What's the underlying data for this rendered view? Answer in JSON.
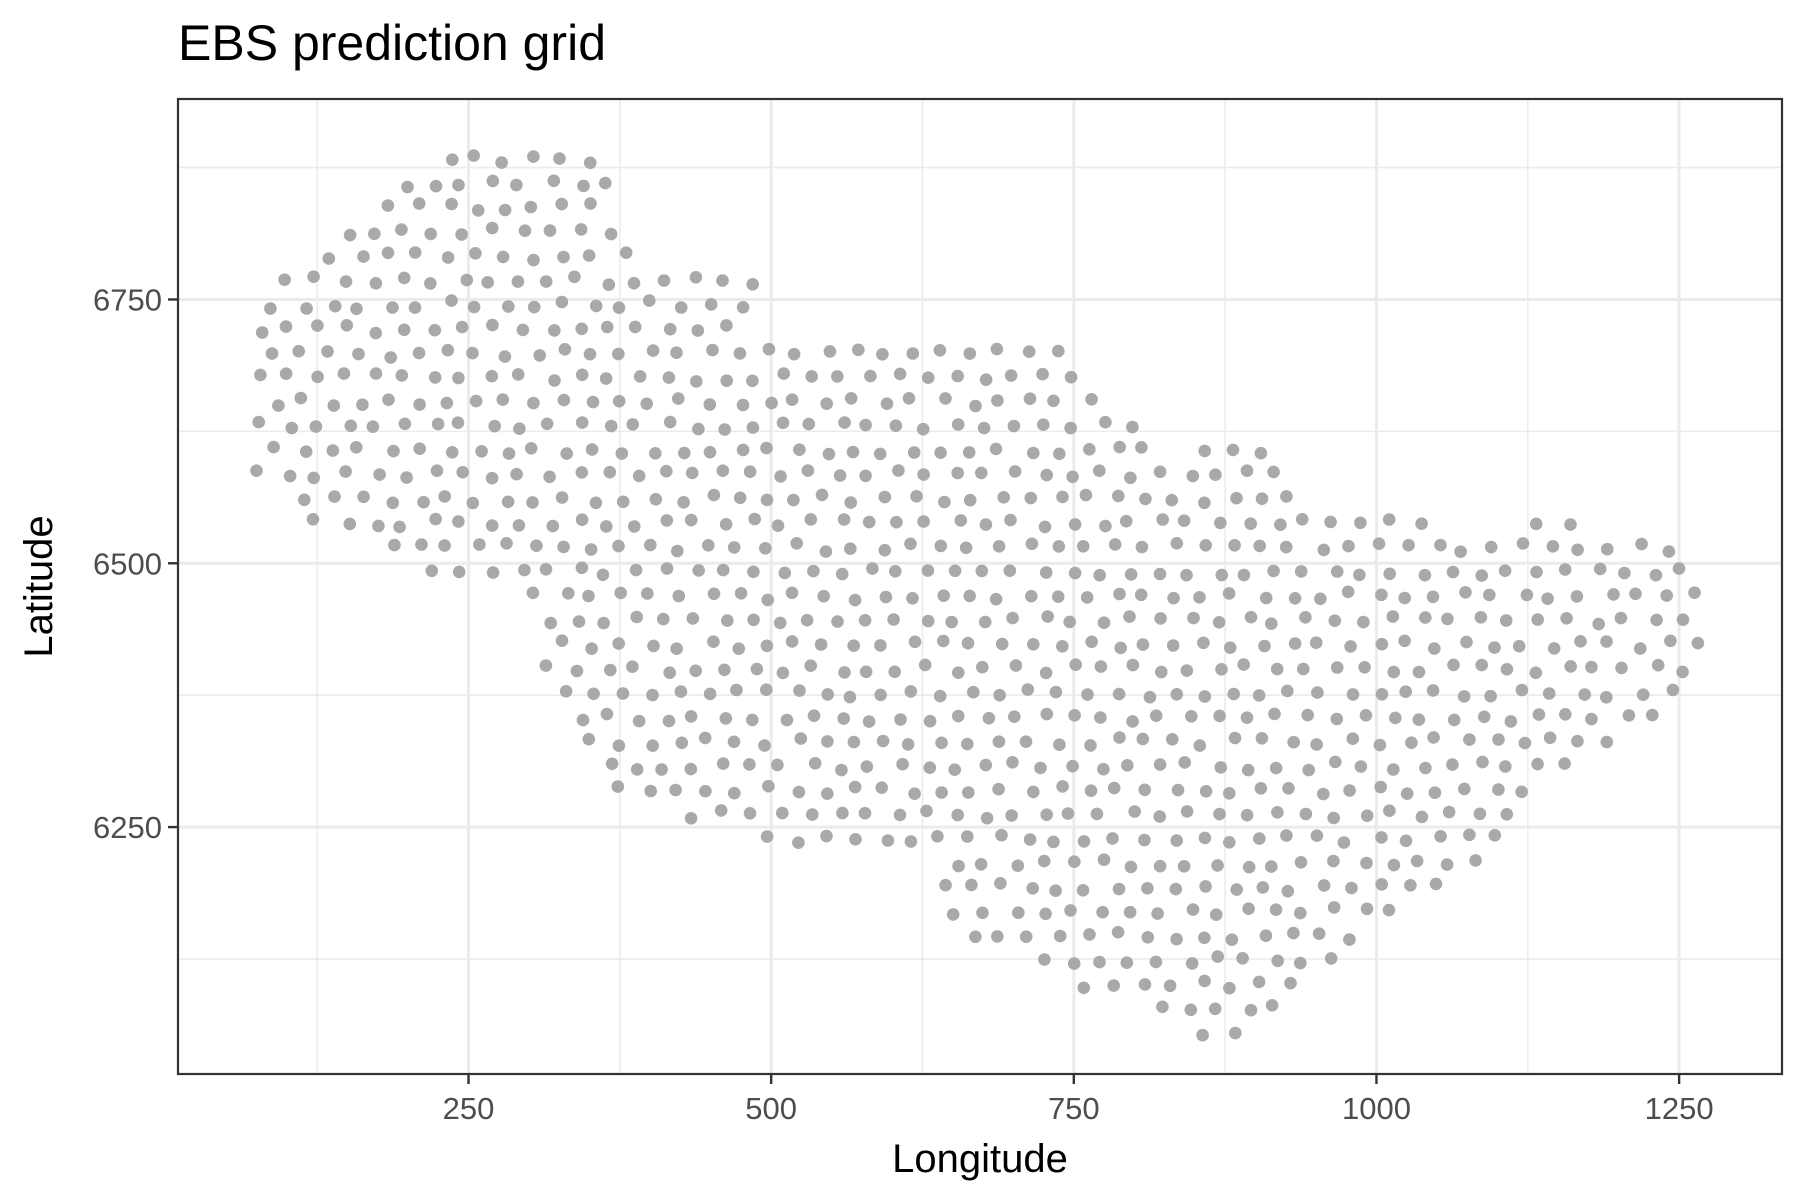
{
  "chart_data": {
    "type": "scatter",
    "title": "EBS prediction grid",
    "xlabel": "Longitude",
    "ylabel": "Latitude",
    "xlim": [
      10,
      1335
    ],
    "ylim": [
      6016,
      6940
    ],
    "x_major_ticks": [
      250,
      500,
      750,
      1000,
      1250
    ],
    "x_tick_labels": [
      "250",
      "500",
      "750",
      "1000",
      "1250"
    ],
    "y_major_ticks": [
      6250,
      6500,
      6750
    ],
    "y_tick_labels": [
      "6250",
      "6500",
      "6750"
    ],
    "x_minor_ticks": [
      125,
      375,
      625,
      875,
      1125
    ],
    "y_minor_ticks": [
      6125,
      6375,
      6625,
      6875
    ],
    "grid": true,
    "point_color": "#a9a9a9",
    "region_outline": [
      [
        65,
        6680
      ],
      [
        80,
        6760
      ],
      [
        110,
        6790
      ],
      [
        160,
        6815
      ],
      [
        200,
        6860
      ],
      [
        240,
        6900
      ],
      [
        300,
        6900
      ],
      [
        345,
        6895
      ],
      [
        375,
        6885
      ],
      [
        370,
        6800
      ],
      [
        410,
        6780
      ],
      [
        460,
        6775
      ],
      [
        495,
        6780
      ],
      [
        480,
        6740
      ],
      [
        480,
        6715
      ],
      [
        560,
        6710
      ],
      [
        650,
        6710
      ],
      [
        700,
        6705
      ],
      [
        745,
        6715
      ],
      [
        745,
        6685
      ],
      [
        800,
        6640
      ],
      [
        830,
        6605
      ],
      [
        905,
        6615
      ],
      [
        950,
        6560
      ],
      [
        1000,
        6550
      ],
      [
        1060,
        6530
      ],
      [
        1150,
        6540
      ],
      [
        1260,
        6510
      ],
      [
        1275,
        6440
      ],
      [
        1240,
        6360
      ],
      [
        1130,
        6280
      ],
      [
        1100,
        6220
      ],
      [
        1050,
        6180
      ],
      [
        980,
        6130
      ],
      [
        930,
        6090
      ],
      [
        880,
        6050
      ],
      [
        850,
        6050
      ],
      [
        800,
        6080
      ],
      [
        740,
        6100
      ],
      [
        680,
        6130
      ],
      [
        640,
        6180
      ],
      [
        630,
        6240
      ],
      [
        560,
        6215
      ],
      [
        520,
        6230
      ],
      [
        470,
        6250
      ],
      [
        420,
        6260
      ],
      [
        360,
        6290
      ],
      [
        310,
        6410
      ],
      [
        290,
        6480
      ],
      [
        240,
        6480
      ],
      [
        180,
        6510
      ],
      [
        110,
        6530
      ],
      [
        75,
        6580
      ],
      [
        70,
        6640
      ]
    ],
    "grid_origin": [
      65,
      6055
    ],
    "grid_step": 24,
    "grid_row_step": 23
  }
}
